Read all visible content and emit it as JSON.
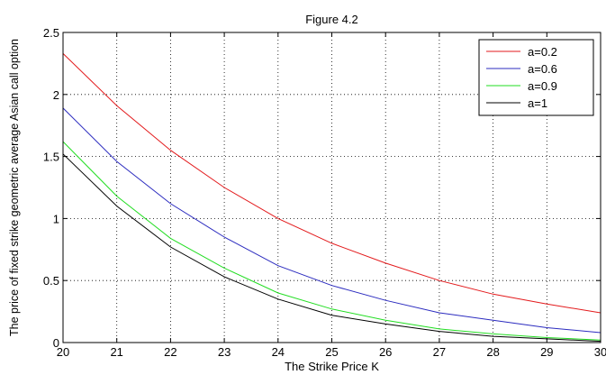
{
  "chart_data": {
    "type": "line",
    "title": "Figure 4.2",
    "xlabel": "The Strike Price K",
    "ylabel": "The price of fixed strike geometric average Asian call option",
    "xlim": [
      20,
      30
    ],
    "ylim": [
      0,
      2.5
    ],
    "x_ticks": [
      "20",
      "21",
      "22",
      "23",
      "24",
      "25",
      "26",
      "27",
      "28",
      "29",
      "30"
    ],
    "y_ticks": [
      "0",
      "0.5",
      "1",
      "1.5",
      "2",
      "2.5"
    ],
    "grid": true,
    "grid_style": "dotted",
    "legend_position": "top-right",
    "x": [
      20,
      21,
      22,
      23,
      24,
      25,
      26,
      27,
      28,
      29,
      30
    ],
    "series": [
      {
        "name": "a=0.2",
        "color": "#e31a1c",
        "values": [
          2.33,
          1.91,
          1.55,
          1.25,
          1.0,
          0.8,
          0.64,
          0.5,
          0.39,
          0.31,
          0.24
        ]
      },
      {
        "name": "a=0.6",
        "color": "#2b2bbf",
        "values": [
          1.89,
          1.46,
          1.12,
          0.85,
          0.62,
          0.46,
          0.34,
          0.24,
          0.18,
          0.12,
          0.08
        ]
      },
      {
        "name": "a=0.9",
        "color": "#22dd22",
        "values": [
          1.62,
          1.18,
          0.84,
          0.6,
          0.4,
          0.27,
          0.18,
          0.11,
          0.07,
          0.04,
          0.02
        ]
      },
      {
        "name": "a=1",
        "color": "#000000",
        "values": [
          1.52,
          1.1,
          0.77,
          0.53,
          0.35,
          0.22,
          0.15,
          0.09,
          0.05,
          0.03,
          0.01
        ]
      }
    ]
  }
}
